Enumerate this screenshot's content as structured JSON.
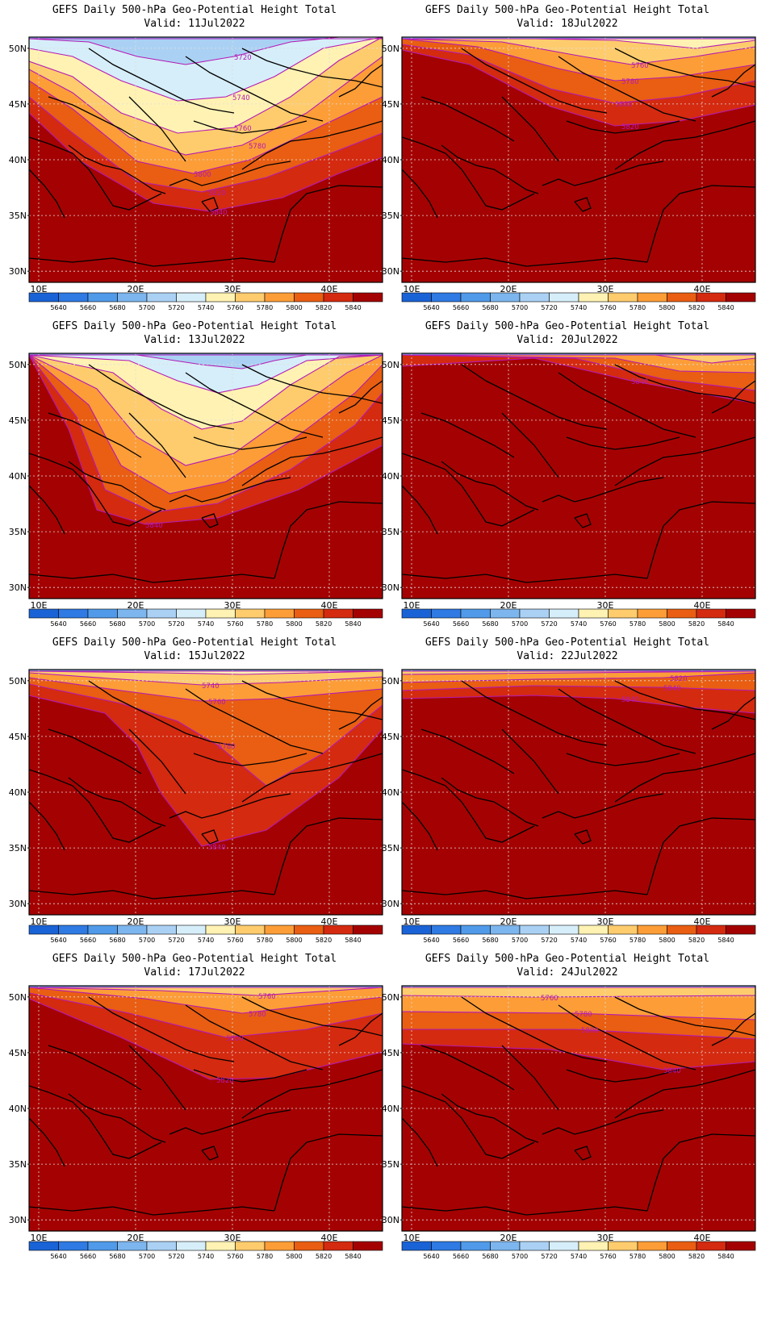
{
  "panels": [
    {
      "title": "GEFS Daily 500-hPa Geo-Potential Height Total",
      "valid": "Valid: 11Jul2022",
      "col": 0,
      "row": 0,
      "contour_labels": [
        "5720",
        "5740",
        "5760",
        "5780",
        "5800",
        "5820",
        "5840"
      ]
    },
    {
      "title": "GEFS Daily 500-hPa Geo-Potential Height Total",
      "valid": "Valid: 18Jul2022",
      "col": 1,
      "row": 0,
      "contour_labels": [
        "5760",
        "5780",
        "5800",
        "5820"
      ]
    },
    {
      "title": "GEFS Daily 500-hPa Geo-Potential Height Total",
      "valid": "Valid: 13Jul2022",
      "col": 0,
      "row": 1,
      "contour_labels": [
        "5840"
      ]
    },
    {
      "title": "GEFS Daily 500-hPa Geo-Potential Height Total",
      "valid": "Valid: 20Jul2022",
      "col": 1,
      "row": 1,
      "contour_labels": [
        "5840"
      ]
    },
    {
      "title": "GEFS Daily 500-hPa Geo-Potential Height Total",
      "valid": "Valid: 15Jul2022",
      "col": 0,
      "row": 2,
      "contour_labels": [
        "5740",
        "5760",
        "5780",
        "5840"
      ]
    },
    {
      "title": "GEFS Daily 500-hPa Geo-Potential Height Total",
      "valid": "Valid: 22Jul2022",
      "col": 1,
      "row": 2,
      "contour_labels": [
        "5800",
        "5820",
        "5840",
        "5840"
      ]
    },
    {
      "title": "GEFS Daily 500-hPa Geo-Potential Height Total",
      "valid": "Valid: 17Jul2022",
      "col": 0,
      "row": 3,
      "contour_labels": [
        "5760",
        "5780",
        "5800",
        "5820"
      ]
    },
    {
      "title": "GEFS Daily 500-hPa Geo-Potential Height Total",
      "valid": "Valid: 24Jul2022",
      "col": 1,
      "row": 3,
      "contour_labels": [
        "5740",
        "5760",
        "5780",
        "5800",
        "5840"
      ]
    }
  ],
  "axes": {
    "lat_labels": [
      "50N",
      "45N",
      "40N",
      "35N",
      "30N"
    ],
    "lon_labels": [
      "10E",
      "20E",
      "30E",
      "40E"
    ]
  },
  "colorbar": {
    "labels": [
      "5640",
      "5660",
      "5680",
      "5700",
      "5720",
      "5740",
      "5760",
      "5780",
      "5800",
      "5820",
      "5840"
    ],
    "colors": [
      "#1a63d6",
      "#2f7ae3",
      "#509ae9",
      "#7db6ef",
      "#aad1f4",
      "#d6eef9",
      "#fff2b3",
      "#fecc6d",
      "#fd9d37",
      "#e95e12",
      "#d42a10",
      "#a40202"
    ]
  },
  "colors": {
    "contour": "#b41ab4",
    "coast": "#000000",
    "grid": "#dddddd"
  }
}
